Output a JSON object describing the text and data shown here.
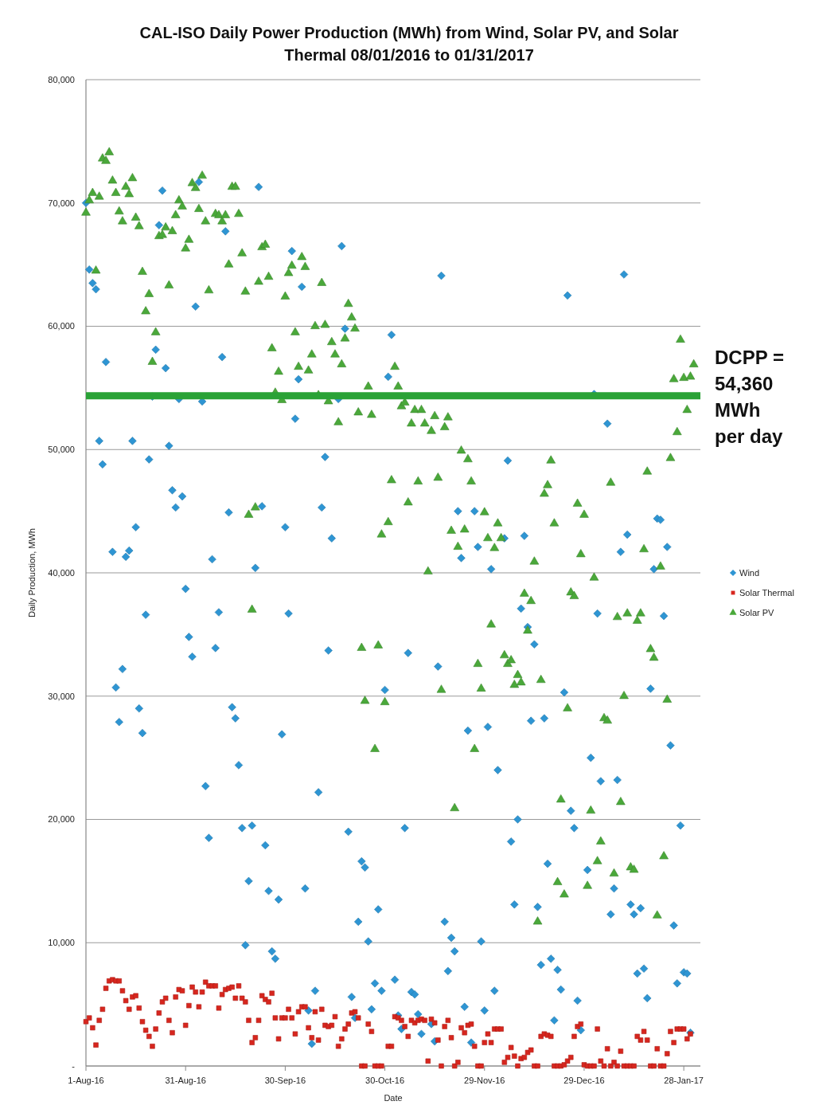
{
  "chart_data": {
    "type": "scatter",
    "title": "CAL-ISO Daily Power Production (MWh) from Wind, Solar PV, and Solar Thermal  08/01/2016 to 01/31/2017",
    "xlabel": "Date",
    "ylabel": "Daily Production, MWh",
    "x": [
      "2016-08-01",
      "2016-08-02",
      "2016-08-03",
      "2016-08-04",
      "2016-08-05",
      "2016-08-06",
      "2016-08-07",
      "2016-08-08",
      "2016-08-09",
      "2016-08-10",
      "2016-08-11",
      "2016-08-12",
      "2016-08-13",
      "2016-08-14",
      "2016-08-15",
      "2016-08-16",
      "2016-08-17",
      "2016-08-18",
      "2016-08-19",
      "2016-08-20",
      "2016-08-21",
      "2016-08-22",
      "2016-08-23",
      "2016-08-24",
      "2016-08-25",
      "2016-08-26",
      "2016-08-27",
      "2016-08-28",
      "2016-08-29",
      "2016-08-30",
      "2016-08-31",
      "2016-09-01",
      "2016-09-02",
      "2016-09-03",
      "2016-09-04",
      "2016-09-05",
      "2016-09-06",
      "2016-09-07",
      "2016-09-08",
      "2016-09-09",
      "2016-09-10",
      "2016-09-11",
      "2016-09-12",
      "2016-09-13",
      "2016-09-14",
      "2016-09-15",
      "2016-09-16",
      "2016-09-17",
      "2016-09-18",
      "2016-09-19",
      "2016-09-20",
      "2016-09-21",
      "2016-09-22",
      "2016-09-23",
      "2016-09-24",
      "2016-09-25",
      "2016-09-26",
      "2016-09-27",
      "2016-09-28",
      "2016-09-29",
      "2016-09-30",
      "2016-10-01",
      "2016-10-02",
      "2016-10-03",
      "2016-10-04",
      "2016-10-05",
      "2016-10-06",
      "2016-10-07",
      "2016-10-08",
      "2016-10-09",
      "2016-10-10",
      "2016-10-11",
      "2016-10-12",
      "2016-10-13",
      "2016-10-14",
      "2016-10-15",
      "2016-10-16",
      "2016-10-17",
      "2016-10-18",
      "2016-10-19",
      "2016-10-20",
      "2016-10-21",
      "2016-10-22",
      "2016-10-23",
      "2016-10-24",
      "2016-10-25",
      "2016-10-26",
      "2016-10-27",
      "2016-10-28",
      "2016-10-29",
      "2016-10-30",
      "2016-10-31",
      "2016-11-01",
      "2016-11-02",
      "2016-11-03",
      "2016-11-04",
      "2016-11-05",
      "2016-11-06",
      "2016-11-07",
      "2016-11-08",
      "2016-11-09",
      "2016-11-10",
      "2016-11-11",
      "2016-11-12",
      "2016-11-13",
      "2016-11-14",
      "2016-11-15",
      "2016-11-16",
      "2016-11-17",
      "2016-11-18",
      "2016-11-19",
      "2016-11-20",
      "2016-11-21",
      "2016-11-22",
      "2016-11-23",
      "2016-11-24",
      "2016-11-25",
      "2016-11-26",
      "2016-11-27",
      "2016-11-28",
      "2016-11-29",
      "2016-11-30",
      "2016-12-01",
      "2016-12-02",
      "2016-12-03",
      "2016-12-04",
      "2016-12-05",
      "2016-12-06",
      "2016-12-07",
      "2016-12-08",
      "2016-12-09",
      "2016-12-10",
      "2016-12-11",
      "2016-12-12",
      "2016-12-13",
      "2016-12-14",
      "2016-12-15",
      "2016-12-16",
      "2016-12-17",
      "2016-12-18",
      "2016-12-19",
      "2016-12-20",
      "2016-12-21",
      "2016-12-22",
      "2016-12-23",
      "2016-12-24",
      "2016-12-25",
      "2016-12-26",
      "2016-12-27",
      "2016-12-28",
      "2016-12-29",
      "2016-12-30",
      "2016-12-31",
      "2017-01-01",
      "2017-01-02",
      "2017-01-03",
      "2017-01-04",
      "2017-01-05",
      "2017-01-06",
      "2017-01-07",
      "2017-01-08",
      "2017-01-09",
      "2017-01-10",
      "2017-01-11",
      "2017-01-12",
      "2017-01-13",
      "2017-01-14",
      "2017-01-15",
      "2017-01-16",
      "2017-01-17",
      "2017-01-18",
      "2017-01-19",
      "2017-01-20",
      "2017-01-21",
      "2017-01-22",
      "2017-01-23",
      "2017-01-24",
      "2017-01-25",
      "2017-01-26",
      "2017-01-27",
      "2017-01-28",
      "2017-01-29",
      "2017-01-30",
      "2017-01-31"
    ],
    "series": [
      {
        "name": "Wind",
        "color": "#2e95d3",
        "marker": "diamond",
        "values": [
          70000,
          64600,
          63500,
          63000,
          50700,
          48800,
          57100,
          null,
          41700,
          30700,
          27900,
          32200,
          41300,
          41800,
          50700,
          43700,
          29000,
          27000,
          36600,
          49200,
          54300,
          58100,
          68200,
          71000,
          56600,
          50300,
          46700,
          45300,
          54100,
          46200,
          38700,
          34800,
          33200,
          61600,
          71700,
          53900,
          22700,
          18500,
          41100,
          33900,
          36800,
          57500,
          67700,
          44900,
          29100,
          28200,
          24400,
          19300,
          9800,
          15000,
          19500,
          40400,
          71300,
          45400,
          17900,
          14200,
          9300,
          8700,
          13500,
          26900,
          43700,
          36700,
          66100,
          52500,
          55700,
          63200,
          14400,
          4500,
          1800,
          6100,
          22200,
          45300,
          49400,
          33700,
          42800,
          null,
          54100,
          66500,
          59800,
          19000,
          5600,
          3900,
          11700,
          16600,
          16100,
          10100,
          4600,
          6700,
          12700,
          6100,
          30500,
          55900,
          59300,
          7000,
          4100,
          3000,
          19300,
          33500,
          6000,
          5800,
          4200,
          2600,
          null,
          null,
          3400,
          2000,
          32400,
          64100,
          11700,
          7700,
          10400,
          9300,
          45000,
          41200,
          4800,
          27200,
          1900,
          45000,
          42100,
          10100,
          4500,
          27500,
          40300,
          6100,
          24000,
          null,
          42800,
          49100,
          18200,
          13100,
          20000,
          37100,
          43000,
          35600,
          28000,
          34200,
          12900,
          8200,
          28200,
          16400,
          8700,
          3700,
          7800,
          6200,
          30300,
          62500,
          20700,
          19300,
          5300,
          2900,
          null,
          15900,
          25000,
          54500,
          36700,
          23100,
          null,
          52100,
          12300,
          14400,
          23200,
          41700,
          64200,
          43100,
          13100,
          12300,
          7500,
          12800,
          7900,
          5500,
          30600,
          40300,
          44400,
          44300,
          36500,
          42100,
          26000,
          11400,
          6700,
          19500,
          7600,
          7500,
          2700,
          null
        ]
      },
      {
        "name": "Solar Thermal",
        "color": "#d7261e",
        "marker": "square",
        "values": [
          3600,
          3900,
          3100,
          1700,
          3700,
          4600,
          6300,
          6900,
          7000,
          6900,
          6900,
          6100,
          5300,
          4600,
          5600,
          5700,
          4700,
          3600,
          2900,
          2400,
          1600,
          3000,
          4300,
          5200,
          5500,
          3700,
          2700,
          5600,
          6200,
          6100,
          3300,
          4900,
          6400,
          6000,
          4800,
          6000,
          6800,
          6500,
          6500,
          6500,
          4700,
          5800,
          6200,
          6300,
          6400,
          5500,
          6500,
          5500,
          5200,
          3700,
          1900,
          2300,
          3700,
          5700,
          5400,
          5200,
          5900,
          3900,
          2200,
          3900,
          3900,
          4600,
          3900,
          2600,
          4400,
          4800,
          4800,
          3100,
          2300,
          4400,
          2100,
          4600,
          3300,
          3200,
          3300,
          4000,
          1600,
          2200,
          3000,
          3400,
          4300,
          4400,
          3900,
          0,
          0,
          3400,
          2800,
          0,
          0,
          0,
          null,
          1600,
          1600,
          4000,
          3900,
          3700,
          3200,
          2400,
          3700,
          3500,
          3700,
          3800,
          3700,
          400,
          3800,
          3500,
          2100,
          0,
          3200,
          3700,
          2300,
          0,
          300,
          3100,
          2700,
          3300,
          3400,
          1600,
          0,
          0,
          1900,
          2600,
          1900,
          3000,
          3000,
          3000,
          300,
          700,
          1500,
          800,
          0,
          600,
          700,
          1100,
          1300,
          0,
          0,
          2400,
          2600,
          2500,
          2400,
          0,
          0,
          0,
          100,
          400,
          700,
          2400,
          3200,
          3400,
          100,
          0,
          0,
          0,
          3000,
          400,
          0,
          1400,
          0,
          300,
          0,
          1200,
          0,
          0,
          0,
          0,
          2400,
          2100,
          2800,
          2100,
          0,
          0,
          1400,
          0,
          0,
          1000,
          2800,
          1900,
          3000,
          3000,
          3000,
          2200,
          2600,
          null
        ]
      },
      {
        "name": "Solar PV",
        "color": "#4aa83a",
        "marker": "triangle",
        "values": [
          69200,
          70200,
          70800,
          64500,
          70500,
          73600,
          73400,
          74100,
          71800,
          70800,
          69300,
          68500,
          71300,
          70700,
          72000,
          68800,
          68100,
          64400,
          61200,
          62600,
          57100,
          59500,
          67300,
          67400,
          68000,
          63300,
          67700,
          69000,
          70200,
          69700,
          66300,
          67000,
          71600,
          71200,
          69500,
          72200,
          68500,
          62900,
          null,
          69100,
          69000,
          68500,
          69000,
          65000,
          71300,
          71300,
          69100,
          65900,
          62800,
          44700,
          37000,
          45300,
          63600,
          66400,
          66600,
          64000,
          58200,
          54600,
          56300,
          54000,
          62400,
          64300,
          64900,
          59500,
          56700,
          65600,
          64800,
          56400,
          57700,
          60000,
          54400,
          63500,
          60100,
          53900,
          58700,
          57700,
          52200,
          56900,
          59000,
          61800,
          60700,
          59800,
          53000,
          33900,
          29600,
          55100,
          52800,
          25700,
          34100,
          43100,
          29500,
          44100,
          47500,
          56700,
          55100,
          53500,
          53800,
          45700,
          52100,
          53200,
          47400,
          53200,
          52100,
          40100,
          51500,
          52700,
          47700,
          30500,
          51800,
          52600,
          43400,
          20900,
          42100,
          49900,
          43500,
          49200,
          47400,
          25700,
          32600,
          30600,
          44900,
          42800,
          35800,
          42000,
          44000,
          42800,
          33300,
          32600,
          32900,
          30900,
          31700,
          31100,
          38300,
          35300,
          37700,
          40900,
          11700,
          31300,
          46400,
          47100,
          49100,
          44000,
          14900,
          21600,
          13900,
          29000,
          38400,
          38100,
          45600,
          41500,
          44700,
          14600,
          20700,
          39600,
          16600,
          18200,
          28200,
          28000,
          47300,
          15600,
          36400,
          21400,
          30000,
          36700,
          16100,
          15900,
          36100,
          36700,
          41900,
          48200,
          33800,
          33100,
          12200,
          40500,
          17000,
          29700,
          49300,
          55700,
          51400,
          58900,
          55800,
          53200,
          55900,
          56900
        ]
      }
    ],
    "xlim": [
      "2016-08-01",
      "2017-02-02"
    ],
    "xticks": [
      {
        "value": "2016-08-01",
        "label": "1-Aug-16"
      },
      {
        "value": "2016-08-31",
        "label": "31-Aug-16"
      },
      {
        "value": "2016-09-30",
        "label": "30-Sep-16"
      },
      {
        "value": "2016-10-30",
        "label": "30-Oct-16"
      },
      {
        "value": "2016-11-29",
        "label": "29-Nov-16"
      },
      {
        "value": "2016-12-29",
        "label": "29-Dec-16"
      },
      {
        "value": "2017-01-28",
        "label": "28-Jan-17"
      }
    ],
    "ylim": [
      0,
      80000
    ],
    "yticks": [
      {
        "value": 0,
        "label": "-"
      },
      {
        "value": 10000,
        "label": "10,000"
      },
      {
        "value": 20000,
        "label": "20,000"
      },
      {
        "value": 30000,
        "label": "30,000"
      },
      {
        "value": 40000,
        "label": "40,000"
      },
      {
        "value": 50000,
        "label": "50,000"
      },
      {
        "value": 60000,
        "label": "60,000"
      },
      {
        "value": 70000,
        "label": "70,000"
      },
      {
        "value": 80000,
        "label": "80,000"
      }
    ],
    "grid": "y",
    "legend": "right",
    "ref_lines": [
      {
        "axis": "y",
        "value": 54360,
        "label": "DCPP = 54,360 MWh per day",
        "color": "#2aa236"
      }
    ]
  }
}
